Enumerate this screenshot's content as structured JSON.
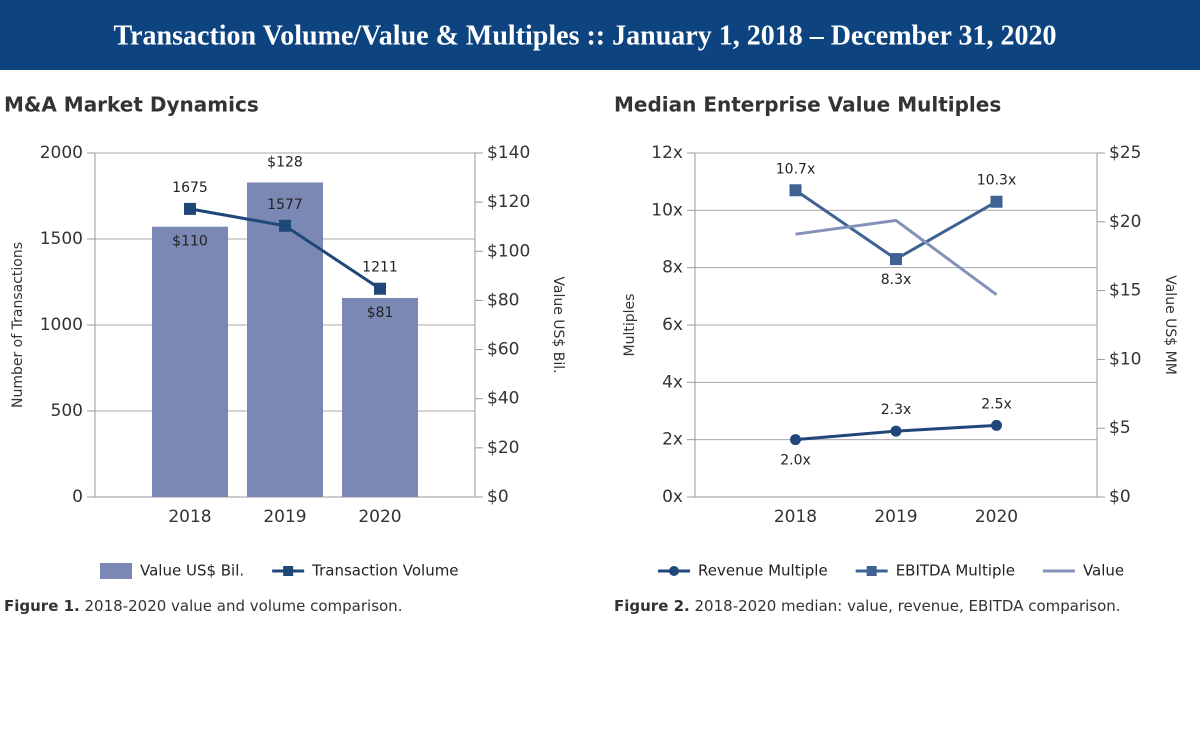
{
  "header": {
    "title": "Transaction Volume/Value & Multiples :: January 1, 2018 – December 31, 2020"
  },
  "chart_data": [
    {
      "type": "bar",
      "title": "M&A Market Dynamics",
      "categories": [
        "2018",
        "2019",
        "2020"
      ],
      "series": [
        {
          "name": "Value US$ Bil.",
          "type": "bar",
          "axis": "y2",
          "color": "#7b88b4",
          "values": [
            110,
            128,
            81
          ],
          "value_labels": [
            "$110",
            "$128",
            "$81"
          ]
        },
        {
          "name": "Transaction Volume",
          "type": "line",
          "marker": "square",
          "color": "#1f477a",
          "values": [
            1675,
            1577,
            1211
          ]
        }
      ],
      "ylabel": "Number of Transactions",
      "y2label": "Value US$ Bil.",
      "ylim": [
        0,
        2000
      ],
      "yticks": [
        0,
        500,
        1000,
        1500,
        2000
      ],
      "y2lim": [
        0,
        140
      ],
      "y2ticks": [
        {
          "value": 0,
          "label": "$0"
        },
        {
          "value": 20,
          "label": "$20"
        },
        {
          "value": 40,
          "label": "$40"
        },
        {
          "value": 60,
          "label": "$60"
        },
        {
          "value": 80,
          "label": "$80"
        },
        {
          "value": 100,
          "label": "$100"
        },
        {
          "value": 120,
          "label": "$120"
        },
        {
          "value": 140,
          "label": "$140"
        }
      ],
      "grid": true,
      "legend": "bottom",
      "caption_label": "Figure 1.",
      "caption_text": "2018-2020 value and volume comparison."
    },
    {
      "type": "line",
      "title": "Median Enterprise Value Multiples",
      "categories": [
        "2018",
        "2019",
        "2020"
      ],
      "series": [
        {
          "name": "Revenue Multiple",
          "type": "line",
          "marker": "circle",
          "color": "#1f477a",
          "values": [
            2.0,
            2.3,
            2.5
          ],
          "value_labels": [
            "2.0x",
            "2.3x",
            "2.5x"
          ]
        },
        {
          "name": "EBITDA Multiple",
          "type": "line",
          "marker": "square",
          "color": "#3e6393",
          "values": [
            10.7,
            8.3,
            10.3
          ],
          "value_labels": [
            "10.7x",
            "8.3x",
            "10.3x"
          ]
        },
        {
          "name": "Value",
          "type": "line",
          "axis": "y2",
          "color": "#8491b9",
          "values": [
            19.1,
            20.1,
            14.7
          ]
        }
      ],
      "ylabel": "Multiples",
      "y2label": "Value US$ MM",
      "ylim": [
        0,
        12
      ],
      "yticks": [
        {
          "value": 0,
          "label": "0x"
        },
        {
          "value": 2,
          "label": "2x"
        },
        {
          "value": 4,
          "label": "4x"
        },
        {
          "value": 6,
          "label": "6x"
        },
        {
          "value": 8,
          "label": "8x"
        },
        {
          "value": 10,
          "label": "10x"
        },
        {
          "value": 12,
          "label": "12x"
        }
      ],
      "y2lim": [
        0,
        25
      ],
      "y2ticks": [
        {
          "value": 0,
          "label": "$0"
        },
        {
          "value": 5,
          "label": "$5"
        },
        {
          "value": 10,
          "label": "$10"
        },
        {
          "value": 15,
          "label": "$15"
        },
        {
          "value": 20,
          "label": "$20"
        },
        {
          "value": 25,
          "label": "$25"
        }
      ],
      "grid": true,
      "legend": "bottom",
      "caption_label": "Figure 2.",
      "caption_text": "2018-2020 median: value, revenue, EBITDA comparison."
    }
  ]
}
